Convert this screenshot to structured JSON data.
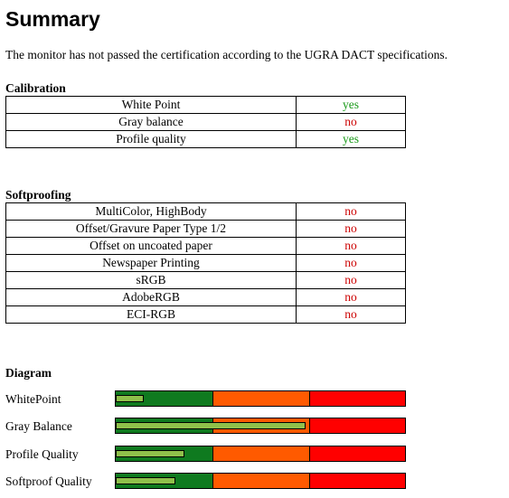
{
  "summary": {
    "title": "Summary",
    "intro": "The monitor has not passed the certification according to the UGRA DACT specifications."
  },
  "calibration": {
    "heading": "Calibration",
    "rows": [
      {
        "label": "White Point",
        "status": "yes"
      },
      {
        "label": "Gray balance",
        "status": "no"
      },
      {
        "label": "Profile quality",
        "status": "yes"
      }
    ]
  },
  "softproofing": {
    "heading": "Softproofing",
    "rows": [
      {
        "label": "MultiColor, HighBody",
        "status": "no"
      },
      {
        "label": "Offset/Gravure Paper Type 1/2",
        "status": "no"
      },
      {
        "label": "Offset on uncoated paper",
        "status": "no"
      },
      {
        "label": "Newspaper Printing",
        "status": "no"
      },
      {
        "label": "sRGB",
        "status": "no"
      },
      {
        "label": "AdobeRGB",
        "status": "no"
      },
      {
        "label": "ECI-RGB",
        "status": "no"
      }
    ]
  },
  "diagram": {
    "heading": "Diagram",
    "zone_colors": {
      "good": "#0f7a1f",
      "warning": "#ff5a00",
      "fail": "#ff0000"
    },
    "indicator_color": "#8fc04a",
    "rows": [
      {
        "label": "WhitePoint",
        "level": 0.09
      },
      {
        "label": "Gray Balance",
        "level": 0.65
      },
      {
        "label": "Profile Quality",
        "level": 0.23
      },
      {
        "label": "Softproof Quality",
        "level": 0.2
      }
    ]
  },
  "colors": {
    "yes": "#1a9a1a",
    "no": "#cc0000"
  }
}
